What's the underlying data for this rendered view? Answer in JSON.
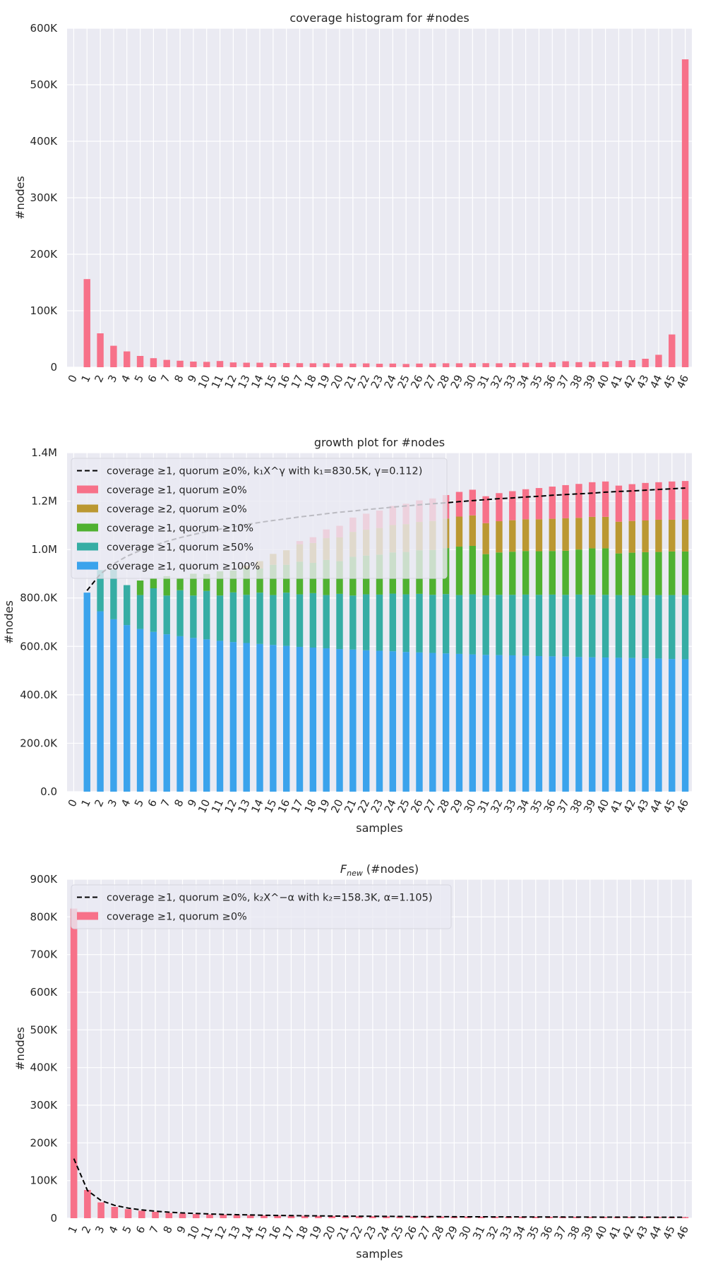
{
  "colors": {
    "background": "#EAEAF2",
    "grid": "#FFFFFF",
    "text": "#262626",
    "coverage_ge1_q0": "#F77189",
    "coverage_ge2_q0": "#BB9832",
    "coverage_ge1_q10": "#50B131",
    "coverage_ge1_q50": "#36ADA4",
    "coverage_ge1_q100": "#3BA3EC",
    "fit_line": "#000000"
  },
  "chart_data": [
    {
      "type": "bar",
      "title": "coverage histogram for #nodes",
      "xlabel": "",
      "ylabel": "#nodes",
      "ylim": [
        0,
        600000
      ],
      "yticks": [
        0,
        100000,
        200000,
        300000,
        400000,
        500000,
        600000
      ],
      "ytick_labels": [
        "0",
        "100K",
        "200K",
        "300K",
        "400K",
        "500K",
        "600K"
      ],
      "categories": [
        "0",
        "1",
        "2",
        "3",
        "4",
        "5",
        "6",
        "7",
        "8",
        "9",
        "10",
        "11",
        "12",
        "13",
        "14",
        "15",
        "16",
        "17",
        "18",
        "19",
        "20",
        "21",
        "22",
        "23",
        "24",
        "25",
        "26",
        "27",
        "28",
        "29",
        "30",
        "31",
        "32",
        "33",
        "34",
        "35",
        "36",
        "37",
        "38",
        "39",
        "40",
        "41",
        "42",
        "43",
        "44",
        "45",
        "46"
      ],
      "series": [
        {
          "name": "coverage",
          "color_key": "coverage_ge1_q0",
          "values": [
            0,
            156000,
            60000,
            38000,
            28000,
            20000,
            16000,
            13000,
            11500,
            10000,
            9500,
            11000,
            8500,
            8000,
            8000,
            7500,
            7500,
            7200,
            7000,
            7000,
            6800,
            6500,
            6800,
            6200,
            6500,
            5800,
            6500,
            6800,
            7000,
            7000,
            7200,
            7200,
            7000,
            7500,
            8000,
            7800,
            9000,
            10500,
            9000,
            9500,
            10000,
            11000,
            12500,
            15000,
            22000,
            58000,
            545000
          ]
        }
      ]
    },
    {
      "type": "stacked_bar",
      "title": "growth plot for #nodes",
      "xlabel": "samples",
      "ylabel": "#nodes",
      "ylim": [
        0,
        1400000
      ],
      "yticks": [
        0,
        200000,
        400000,
        600000,
        800000,
        1000000,
        1200000,
        1400000
      ],
      "ytick_labels": [
        "0.0",
        "200.0K",
        "400.0K",
        "600.0K",
        "800.0K",
        "1.0M",
        "1.2M",
        "1.4M"
      ],
      "categories": [
        "0",
        "1",
        "2",
        "3",
        "4",
        "5",
        "6",
        "7",
        "8",
        "9",
        "10",
        "11",
        "12",
        "13",
        "14",
        "15",
        "16",
        "17",
        "18",
        "19",
        "20",
        "21",
        "22",
        "23",
        "24",
        "25",
        "26",
        "27",
        "28",
        "29",
        "30",
        "31",
        "32",
        "33",
        "34",
        "35",
        "36",
        "37",
        "38",
        "39",
        "40",
        "41",
        "42",
        "43",
        "44",
        "45",
        "46"
      ],
      "legend": [
        "coverage ≥1, quorum ≥0%, k₁X^γ with k₁=830.5K, γ=0.112)",
        "coverage ≥1, quorum ≥0%",
        "coverage ≥2, quorum ≥0%",
        "coverage ≥1, quorum ≥10%",
        "coverage ≥1, quorum ≥50%",
        "coverage ≥1, quorum ≥100%"
      ],
      "legend_position": "top-left",
      "series": [
        {
          "name": "coverage ≥1, quorum ≥100%",
          "color_key": "coverage_ge1_q100",
          "values": [
            0,
            822000,
            745000,
            712000,
            688000,
            672000,
            660000,
            650000,
            642000,
            635000,
            629000,
            623000,
            618000,
            614000,
            610000,
            606000,
            602000,
            598000,
            595000,
            592000,
            589000,
            587000,
            584000,
            582000,
            580000,
            577000,
            575000,
            573000,
            571000,
            569000,
            567000,
            565000,
            564000,
            563000,
            561000,
            560000,
            559000,
            558000,
            556000,
            555000,
            554000,
            553000,
            552000,
            551000,
            550000,
            548000,
            547000
          ]
        },
        {
          "name": "coverage ≥1, quorum ≥50%",
          "color_key": "coverage_ge1_q50",
          "values": [
            0,
            0,
            170000,
            205000,
            165000,
            140000,
            180000,
            160000,
            190000,
            175000,
            200000,
            187000,
            205000,
            199000,
            212000,
            206000,
            220000,
            217000,
            225000,
            220000,
            228000,
            223000,
            231000,
            232000,
            238000,
            238000,
            242000,
            240000,
            245000,
            243000,
            248000,
            246000,
            249000,
            250000,
            253000,
            253000,
            255000,
            255000,
            258000,
            258000,
            259000,
            259000,
            259000,
            260000,
            262000,
            264000,
            265000
          ]
        },
        {
          "name": "coverage ≥1, quorum ≥10%",
          "color_key": "coverage_ge1_q10",
          "values": [
            0,
            0,
            0,
            0,
            0,
            60000,
            40000,
            80000,
            50000,
            90000,
            70000,
            100000,
            90000,
            110000,
            100000,
            125000,
            115000,
            135000,
            125000,
            145000,
            135000,
            160000,
            160000,
            165000,
            170000,
            175000,
            180000,
            185000,
            190000,
            200000,
            200000,
            170000,
            175000,
            178000,
            180000,
            180000,
            180000,
            182000,
            186000,
            192000,
            192000,
            172000,
            176000,
            178000,
            178000,
            180000,
            180000
          ]
        },
        {
          "name": "coverage ≥2, quorum ≥0%",
          "color_key": "coverage_ge2_q0",
          "values": [
            0,
            0,
            0,
            0,
            0,
            0,
            0,
            0,
            0,
            0,
            0,
            0,
            0,
            10000,
            30000,
            45000,
            60000,
            72000,
            82000,
            90000,
            98000,
            103000,
            107000,
            110000,
            113000,
            115000,
            117000,
            120000,
            122000,
            124000,
            126000,
            128000,
            129000,
            130000,
            131000,
            132000,
            133000,
            134000,
            131000,
            130000,
            130000,
            131000,
            131000,
            131000,
            133000,
            131000,
            132000
          ]
        },
        {
          "name": "coverage ≥1, quorum ≥0%",
          "color_key": "coverage_ge1_q0",
          "values": [
            0,
            0,
            0,
            0,
            0,
            0,
            0,
            0,
            0,
            0,
            0,
            0,
            0,
            0,
            0,
            0,
            0,
            13000,
            24000,
            36000,
            48000,
            59000,
            66000,
            72000,
            79000,
            84000,
            89000,
            93000,
            97000,
            102000,
            106000,
            111000,
            116000,
            120000,
            124000,
            129000,
            133000,
            137000,
            140000,
            143000,
            146000,
            149000,
            152000,
            155000,
            155000,
            158000,
            159000
          ]
        },
        {
          "name": "coverage ≥1, quorum ≥0%, k₁X^γ with k₁=830.5K, γ=0.112)",
          "type": "line",
          "style": "dashed",
          "color_key": "fit_line",
          "values": [
            null,
            830500,
            899000,
            941000,
            972000,
            996000,
            1016000,
            1034000,
            1049000,
            1062000,
            1074000,
            1084000,
            1094000,
            1103000,
            1112000,
            1120000,
            1127000,
            1135000,
            1141000,
            1148000,
            1154000,
            1159000,
            1165000,
            1170000,
            1175000,
            1180000,
            1185000,
            1189000,
            1193000,
            1198000,
            1202000,
            1206000,
            1210000,
            1213000,
            1217000,
            1220000,
            1224000,
            1227000,
            1230000,
            1233000,
            1237000,
            1240000,
            1242000,
            1245000,
            1248000,
            1251000,
            1254000
          ]
        }
      ]
    },
    {
      "type": "bar",
      "title_main": "F",
      "title_sub": "new",
      "title_rest": " (#nodes)",
      "title": "Fnew (#nodes)",
      "xlabel": "samples",
      "ylabel": "#nodes",
      "ylim": [
        0,
        900000
      ],
      "yticks": [
        0,
        100000,
        200000,
        300000,
        400000,
        500000,
        600000,
        700000,
        800000,
        900000
      ],
      "ytick_labels": [
        "0",
        "100K",
        "200K",
        "300K",
        "400K",
        "500K",
        "600K",
        "700K",
        "800K",
        "900K"
      ],
      "categories": [
        "1",
        "2",
        "3",
        "4",
        "5",
        "6",
        "7",
        "8",
        "9",
        "10",
        "11",
        "12",
        "13",
        "14",
        "15",
        "16",
        "17",
        "18",
        "19",
        "20",
        "21",
        "22",
        "23",
        "24",
        "25",
        "26",
        "27",
        "28",
        "29",
        "30",
        "31",
        "32",
        "33",
        "34",
        "35",
        "36",
        "37",
        "38",
        "39",
        "40",
        "41",
        "42",
        "43",
        "44",
        "45",
        "46"
      ],
      "legend": [
        "coverage ≥1, quorum ≥0%, k₂X^−α with k₂=158.3K, α=1.105)",
        "coverage ≥1, quorum ≥0%"
      ],
      "legend_position": "top-left",
      "series": [
        {
          "name": "coverage ≥1, quorum ≥0%",
          "color_key": "coverage_ge1_q0",
          "values": [
            822000,
            75000,
            42000,
            30000,
            24000,
            20000,
            17000,
            14000,
            12500,
            11000,
            10000,
            9500,
            8500,
            8000,
            7500,
            7000,
            6800,
            6500,
            6200,
            6000,
            5700,
            5500,
            5300,
            5100,
            4900,
            4800,
            4600,
            4500,
            4400,
            4300,
            4200,
            4100,
            4000,
            3900,
            3800,
            3700,
            3600,
            3550,
            3500,
            3450,
            3400,
            3350,
            3300,
            3250,
            3200,
            3150
          ]
        },
        {
          "name": "coverage ≥1, quorum ≥0%, k₂X^−α with k₂=158.3K, α=1.105)",
          "type": "line",
          "style": "dashed",
          "color_key": "fit_line",
          "values": [
            158300,
            73500,
            47000,
            34200,
            26800,
            21900,
            18500,
            15900,
            14000,
            12500,
            11200,
            10200,
            9300,
            8600,
            7900,
            7400,
            6900,
            6500,
            6100,
            5800,
            5500,
            5200,
            5000,
            4800,
            4600,
            4400,
            4200,
            4100,
            3900,
            3800,
            3700,
            3600,
            3500,
            3400,
            3300,
            3200,
            3100,
            3050,
            3000,
            2900,
            2850,
            2800,
            2750,
            2700,
            2650,
            2600
          ]
        }
      ]
    }
  ]
}
